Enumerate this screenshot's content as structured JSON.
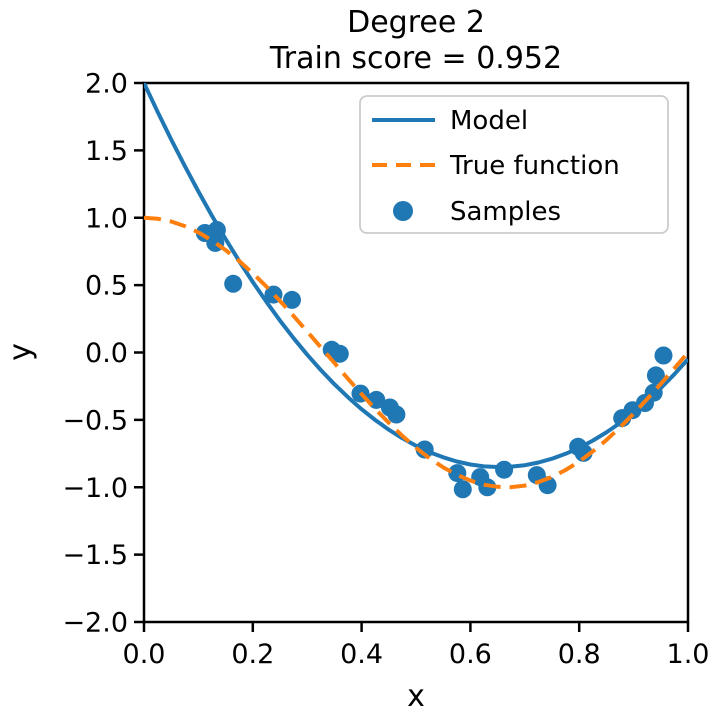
{
  "title": {
    "line1": "Degree 2",
    "line2": "Train score = 0.952"
  },
  "axes": {
    "xlabel": "x",
    "ylabel": "y",
    "x_tick_labels": [
      "0.0",
      "0.2",
      "0.4",
      "0.6",
      "0.8",
      "1.0"
    ],
    "y_tick_labels": [
      "−2.0",
      "−1.5",
      "−1.0",
      "−0.5",
      "0.0",
      "0.5",
      "1.0",
      "1.5",
      "2.0"
    ]
  },
  "legend": {
    "items": [
      {
        "label": "Model",
        "marker": "solid-line",
        "color": "#1f77b4"
      },
      {
        "label": "True function",
        "marker": "dashed-line",
        "color": "#ff7f0e"
      },
      {
        "label": "Samples",
        "marker": "dot",
        "color": "#1f77b4"
      }
    ]
  },
  "chart_data": {
    "type": "line+scatter",
    "title": "Degree 2",
    "subtitle": "Train score = 0.952",
    "xlabel": "x",
    "ylabel": "y",
    "xlim": [
      0.0,
      1.0
    ],
    "ylim": [
      -2.0,
      2.0
    ],
    "x_ticks": [
      0.0,
      0.2,
      0.4,
      0.6,
      0.8,
      1.0
    ],
    "y_ticks": [
      -2.0,
      -1.5,
      -1.0,
      -0.5,
      0.0,
      0.5,
      1.0,
      1.5,
      2.0
    ],
    "grid": false,
    "legend_position": "upper right",
    "x_curve": [
      0.0,
      0.025,
      0.05,
      0.075,
      0.1,
      0.125,
      0.15,
      0.175,
      0.2,
      0.225,
      0.25,
      0.275,
      0.3,
      0.325,
      0.35,
      0.375,
      0.4,
      0.425,
      0.45,
      0.475,
      0.5,
      0.525,
      0.55,
      0.575,
      0.6,
      0.625,
      0.65,
      0.675,
      0.7,
      0.725,
      0.75,
      0.775,
      0.8,
      0.825,
      0.85,
      0.875,
      0.9,
      0.925,
      0.95,
      0.975,
      1.0
    ],
    "series": [
      {
        "name": "Model",
        "style": "solid",
        "color": "#1f77b4",
        "y": [
          2.0,
          1.786,
          1.581,
          1.384,
          1.195,
          1.014,
          0.842,
          0.678,
          0.523,
          0.376,
          0.237,
          0.106,
          -0.016,
          -0.13,
          -0.235,
          -0.332,
          -0.421,
          -0.501,
          -0.573,
          -0.637,
          -0.692,
          -0.74,
          -0.778,
          -0.809,
          -0.831,
          -0.845,
          -0.85,
          -0.847,
          -0.836,
          -0.816,
          -0.788,
          -0.752,
          -0.707,
          -0.654,
          -0.593,
          -0.523,
          -0.445,
          -0.359,
          -0.264,
          -0.161,
          -0.05
        ]
      },
      {
        "name": "True function",
        "style": "dashed",
        "color": "#ff7f0e",
        "y": [
          1.0,
          0.993,
          0.972,
          0.938,
          0.891,
          0.831,
          0.76,
          0.679,
          0.588,
          0.489,
          0.383,
          0.271,
          0.156,
          0.039,
          -0.078,
          -0.195,
          -0.309,
          -0.419,
          -0.522,
          -0.619,
          -0.707,
          -0.785,
          -0.853,
          -0.907,
          -0.951,
          -0.981,
          -0.997,
          -0.999,
          -0.988,
          -0.962,
          -0.924,
          -0.872,
          -0.809,
          -0.734,
          -0.649,
          -0.556,
          -0.454,
          -0.345,
          -0.233,
          -0.117,
          0.0
        ]
      }
    ],
    "samples": {
      "name": "Samples",
      "color": "#1f77b4",
      "points": [
        [
          0.112,
          0.887
        ],
        [
          0.134,
          0.909
        ],
        [
          0.131,
          0.813
        ],
        [
          0.164,
          0.51
        ],
        [
          0.238,
          0.43
        ],
        [
          0.272,
          0.39
        ],
        [
          0.345,
          0.02
        ],
        [
          0.36,
          -0.01
        ],
        [
          0.398,
          -0.305
        ],
        [
          0.427,
          -0.352
        ],
        [
          0.452,
          -0.408
        ],
        [
          0.464,
          -0.46
        ],
        [
          0.516,
          -0.72
        ],
        [
          0.576,
          -0.895
        ],
        [
          0.586,
          -1.015
        ],
        [
          0.618,
          -0.925
        ],
        [
          0.631,
          -1.0
        ],
        [
          0.662,
          -0.87
        ],
        [
          0.722,
          -0.91
        ],
        [
          0.742,
          -0.985
        ],
        [
          0.798,
          -0.7
        ],
        [
          0.808,
          -0.745
        ],
        [
          0.879,
          -0.487
        ],
        [
          0.898,
          -0.428
        ],
        [
          0.921,
          -0.375
        ],
        [
          0.937,
          -0.298
        ],
        [
          0.941,
          -0.17
        ],
        [
          0.955,
          -0.022
        ]
      ]
    },
    "draw_order": [
      "Model",
      "Samples",
      "True function"
    ]
  }
}
